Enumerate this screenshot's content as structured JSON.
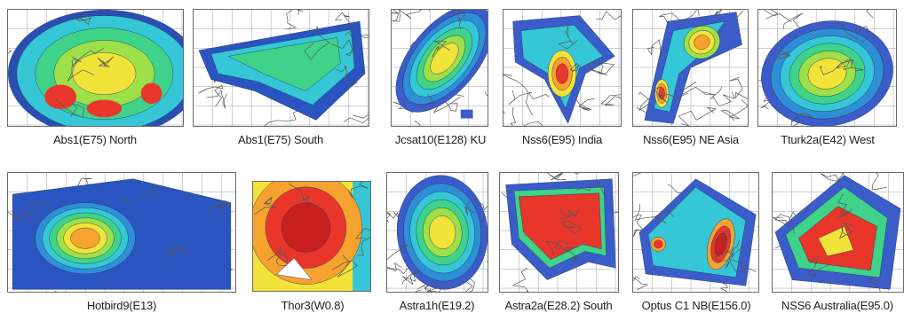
{
  "footprints": [
    {
      "label": "Abs1(E75) North"
    },
    {
      "label": "Abs1(E75) South"
    },
    {
      "label": "Jcsat10(E128) KU"
    },
    {
      "label": "Nss6(E95) India"
    },
    {
      "label": "Nss6(E95) NE Asia"
    },
    {
      "label": "Tturk2a(E42) West"
    },
    {
      "label": "Hotbird9(E13)"
    },
    {
      "label": "Thor3(W0.8)"
    },
    {
      "label": "Astra1h(E19.2)"
    },
    {
      "label": "Astra2a(E28.2) South"
    },
    {
      "label": "Optus C1 NB(E156.0)"
    },
    {
      "label": "NSS6 Australia(E95.0)"
    }
  ]
}
